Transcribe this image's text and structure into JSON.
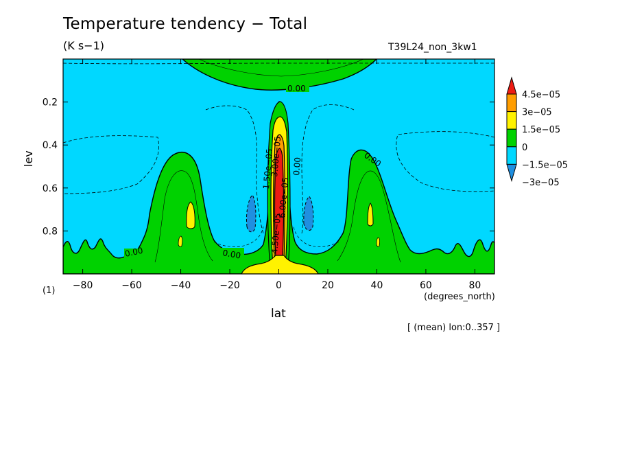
{
  "chart_data": {
    "type": "contour",
    "title": "Temperature tendency − Total",
    "units": "(K s−1)",
    "run_label": "T39L24_non_3kw1",
    "xlabel": "lat",
    "xunits": "(degrees_north)",
    "ylabel": "lev",
    "figure_number": "(1)",
    "footer": "[ (mean) lon:0..357 ]",
    "xlim": [
      -88,
      88
    ],
    "ylim": [
      1.0,
      0.0
    ],
    "y_reversed": true,
    "x_ticks": [
      -80,
      -60,
      -40,
      -20,
      0,
      20,
      40,
      60,
      80
    ],
    "x_tick_labels": [
      "−80",
      "−60",
      "−40",
      "−20",
      "0",
      "20",
      "40",
      "60",
      "80"
    ],
    "y_ticks": [
      0.2,
      0.4,
      0.6,
      0.8
    ],
    "y_tick_labels": [
      "0.2",
      "0.4",
      "0.6",
      "0.8"
    ],
    "colorbar": {
      "levels": [
        -3e-05,
        -1.5e-05,
        0,
        1.5e-05,
        3e-05,
        4.5e-05
      ],
      "labels": [
        "−3e−05",
        "−1.5e−05",
        "0",
        "1.5e−05",
        "3e−05",
        "4.5e−05"
      ],
      "colors": [
        "#1f8fe0",
        "#00d8ff",
        "#00d200",
        "#fff200",
        "#ff9d00",
        "#ee1b13"
      ]
    },
    "contour_labels": [
      "0.00",
      "0.00",
      "0.00",
      "0.00",
      "0.00",
      "1.50e−05",
      "3.00e−05",
      "6.00e−05",
      "4.50e−05"
    ],
    "background_color": "#00d8ff"
  }
}
